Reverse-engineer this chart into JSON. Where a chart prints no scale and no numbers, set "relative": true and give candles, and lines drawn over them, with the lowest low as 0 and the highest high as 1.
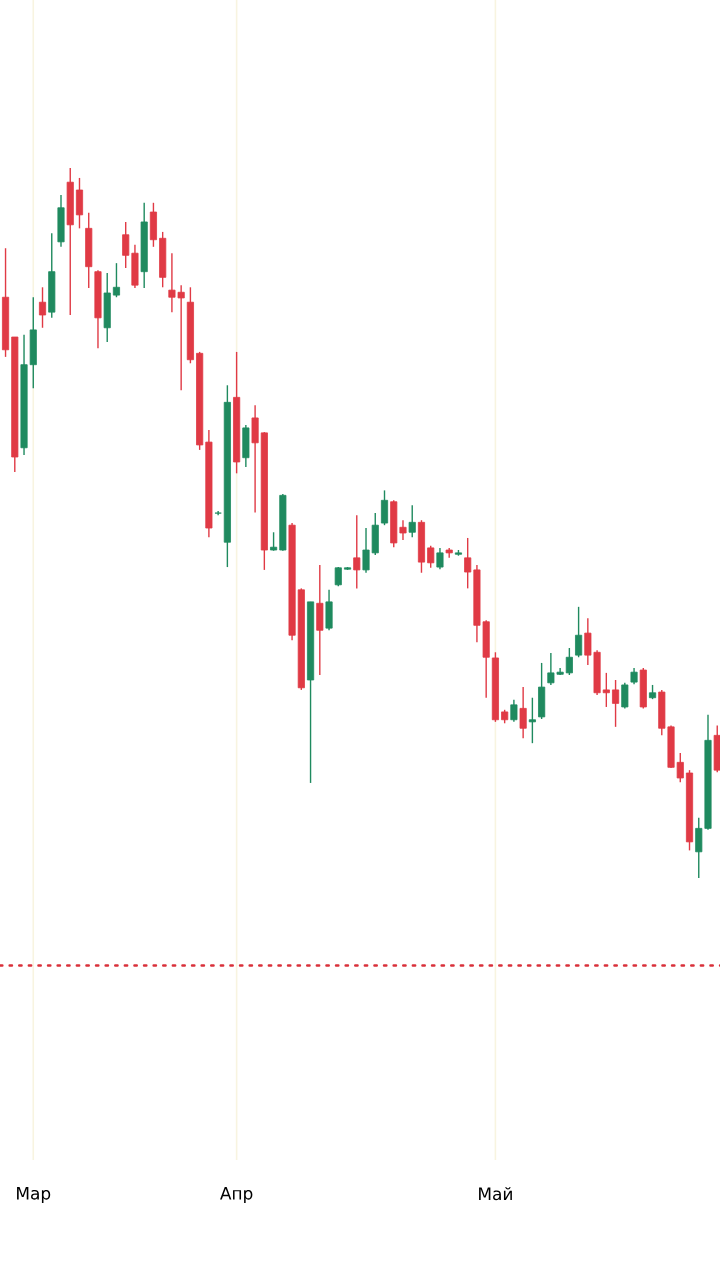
{
  "chart_data": {
    "type": "candlestick",
    "relative": true,
    "grid": "x",
    "categories": [
      null,
      null,
      null,
      "Мар",
      null,
      null,
      null,
      null,
      null,
      null,
      null,
      null,
      null,
      null,
      null,
      null,
      null,
      null,
      null,
      null,
      null,
      null,
      null,
      null,
      null,
      "Апр",
      null,
      null,
      null,
      null,
      null,
      null,
      null,
      null,
      null,
      null,
      null,
      null,
      null,
      null,
      null,
      null,
      null,
      null,
      null,
      null,
      null,
      null,
      null,
      null,
      null,
      null,
      null,
      "Май",
      null,
      null,
      null,
      null,
      null,
      null,
      null,
      null,
      null,
      null,
      null,
      null,
      null,
      null,
      null,
      null,
      null,
      null,
      null,
      null,
      null,
      null,
      null,
      null
    ],
    "ohlc": [
      [
        0.818,
        0.887,
        0.734,
        0.744
      ],
      [
        0.762,
        0.762,
        0.572,
        0.593
      ],
      [
        0.606,
        0.765,
        0.596,
        0.723
      ],
      [
        0.723,
        0.818,
        0.69,
        0.772
      ],
      [
        0.811,
        0.832,
        0.775,
        0.793
      ],
      [
        0.797,
        0.908,
        0.789,
        0.854
      ],
      [
        0.896,
        0.962,
        0.889,
        0.944
      ],
      [
        0.98,
        1.0,
        0.793,
        0.92
      ],
      [
        0.969,
        0.986,
        0.915,
        0.934
      ],
      [
        0.915,
        0.937,
        0.831,
        0.861
      ],
      [
        0.854,
        0.856,
        0.746,
        0.789
      ],
      [
        0.775,
        0.852,
        0.755,
        0.824
      ],
      [
        0.821,
        0.866,
        0.818,
        0.832
      ],
      [
        0.906,
        0.924,
        0.859,
        0.877
      ],
      [
        0.88,
        0.892,
        0.831,
        0.835
      ],
      [
        0.854,
        0.951,
        0.831,
        0.924
      ],
      [
        0.938,
        0.951,
        0.889,
        0.899
      ],
      [
        0.901,
        0.91,
        0.832,
        0.846
      ],
      [
        0.828,
        0.88,
        0.797,
        0.818
      ],
      [
        0.825,
        0.835,
        0.687,
        0.817
      ],
      [
        0.811,
        0.832,
        0.725,
        0.73
      ],
      [
        0.739,
        0.741,
        0.603,
        0.61
      ],
      [
        0.614,
        0.631,
        0.48,
        0.493
      ],
      [
        0.514,
        0.517,
        0.511,
        0.514
      ],
      [
        0.473,
        0.694,
        0.438,
        0.67
      ],
      [
        0.677,
        0.741,
        0.57,
        0.586
      ],
      [
        0.592,
        0.638,
        0.579,
        0.634
      ],
      [
        0.648,
        0.666,
        0.515,
        0.613
      ],
      [
        0.627,
        0.628,
        0.434,
        0.462
      ],
      [
        0.462,
        0.487,
        0.461,
        0.466
      ],
      [
        0.462,
        0.541,
        0.461,
        0.539
      ],
      [
        0.497,
        0.5,
        0.335,
        0.342
      ],
      [
        0.406,
        0.408,
        0.265,
        0.268
      ],
      [
        0.279,
        0.389,
        0.134,
        0.389
      ],
      [
        0.387,
        0.441,
        0.286,
        0.349
      ],
      [
        0.352,
        0.406,
        0.349,
        0.389
      ],
      [
        0.413,
        0.438,
        0.411,
        0.437
      ],
      [
        0.435,
        0.438,
        0.434,
        0.437
      ],
      [
        0.451,
        0.511,
        0.408,
        0.434
      ],
      [
        0.434,
        0.493,
        0.43,
        0.462
      ],
      [
        0.458,
        0.514,
        0.455,
        0.497
      ],
      [
        0.5,
        0.546,
        0.497,
        0.532
      ],
      [
        0.53,
        0.532,
        0.466,
        0.472
      ],
      [
        0.494,
        0.504,
        0.476,
        0.486
      ],
      [
        0.487,
        0.525,
        0.48,
        0.501
      ],
      [
        0.501,
        0.504,
        0.43,
        0.445
      ],
      [
        0.465,
        0.468,
        0.437,
        0.444
      ],
      [
        0.438,
        0.465,
        0.435,
        0.458
      ],
      [
        0.462,
        0.465,
        0.451,
        0.458
      ],
      [
        0.456,
        0.462,
        0.454,
        0.458
      ],
      [
        0.451,
        0.479,
        0.408,
        0.431
      ],
      [
        0.434,
        0.441,
        0.332,
        0.356
      ],
      [
        0.361,
        0.363,
        0.254,
        0.311
      ],
      [
        0.31,
        0.318,
        0.22,
        0.223
      ],
      [
        0.234,
        0.237,
        0.218,
        0.223
      ],
      [
        0.223,
        0.251,
        0.22,
        0.244
      ],
      [
        0.239,
        0.269,
        0.197,
        0.211
      ],
      [
        0.22,
        0.254,
        0.19,
        0.223
      ],
      [
        0.227,
        0.303,
        0.224,
        0.269
      ],
      [
        0.275,
        0.317,
        0.272,
        0.289
      ],
      [
        0.287,
        0.296,
        0.286,
        0.29
      ],
      [
        0.289,
        0.324,
        0.286,
        0.311
      ],
      [
        0.314,
        0.382,
        0.311,
        0.342
      ],
      [
        0.345,
        0.366,
        0.3,
        0.314
      ],
      [
        0.318,
        0.321,
        0.258,
        0.261
      ],
      [
        0.265,
        0.289,
        0.241,
        0.261
      ],
      [
        0.265,
        0.279,
        0.213,
        0.246
      ],
      [
        0.241,
        0.275,
        0.239,
        0.272
      ],
      [
        0.276,
        0.296,
        0.273,
        0.29
      ],
      [
        0.293,
        0.296,
        0.239,
        0.241
      ],
      [
        0.254,
        0.272,
        0.252,
        0.261
      ],
      [
        0.262,
        0.265,
        0.201,
        0.211
      ],
      [
        0.213,
        0.215,
        0.155,
        0.156
      ],
      [
        0.163,
        0.176,
        0.135,
        0.141
      ],
      [
        0.148,
        0.152,
        0.039,
        0.051
      ],
      [
        0.037,
        0.085,
        0.0,
        0.07
      ],
      [
        0.07,
        0.23,
        0.068,
        0.194
      ],
      [
        0.201,
        0.215,
        0.149,
        0.152
      ]
    ],
    "colors": [
      "#e03a45",
      "#e03a45",
      "#1f8a5f",
      "#1f8a5f",
      "#e03a45",
      "#1f8a5f",
      "#1f8a5f",
      "#e03a45",
      "#e03a45",
      "#e03a45",
      "#e03a45",
      "#1f8a5f",
      "#1f8a5f",
      "#e03a45",
      "#e03a45",
      "#1f8a5f",
      "#e03a45",
      "#e03a45",
      "#e03a45",
      "#e03a45",
      "#e03a45",
      "#e03a45",
      "#e03a45",
      "#1f8a5f",
      "#1f8a5f",
      "#e03a45",
      "#1f8a5f",
      "#e03a45",
      "#e03a45",
      "#1f8a5f",
      "#1f8a5f",
      "#e03a45",
      "#e03a45",
      "#1f8a5f",
      "#e03a45",
      "#1f8a5f",
      "#1f8a5f",
      "#1f8a5f",
      "#e03a45",
      "#1f8a5f",
      "#1f8a5f",
      "#1f8a5f",
      "#e03a45",
      "#e03a45",
      "#1f8a5f",
      "#e03a45",
      "#e03a45",
      "#1f8a5f",
      "#e03a45",
      "#1f8a5f",
      "#e03a45",
      "#e03a45",
      "#e03a45",
      "#e03a45",
      "#e03a45",
      "#1f8a5f",
      "#e03a45",
      "#1f8a5f",
      "#1f8a5f",
      "#1f8a5f",
      "#1f8a5f",
      "#1f8a5f",
      "#1f8a5f",
      "#e03a45",
      "#e03a45",
      "#e03a45",
      "#e03a45",
      "#1f8a5f",
      "#1f8a5f",
      "#e03a45",
      "#1f8a5f",
      "#e03a45",
      "#e03a45",
      "#e03a45",
      "#e03a45",
      "#1f8a5f",
      "#1f8a5f",
      "#e03a45"
    ],
    "ref_lines": [
      {
        "axis": "y",
        "value": -0.123,
        "color": "#d9303a",
        "line_style": "dotted"
      }
    ]
  }
}
